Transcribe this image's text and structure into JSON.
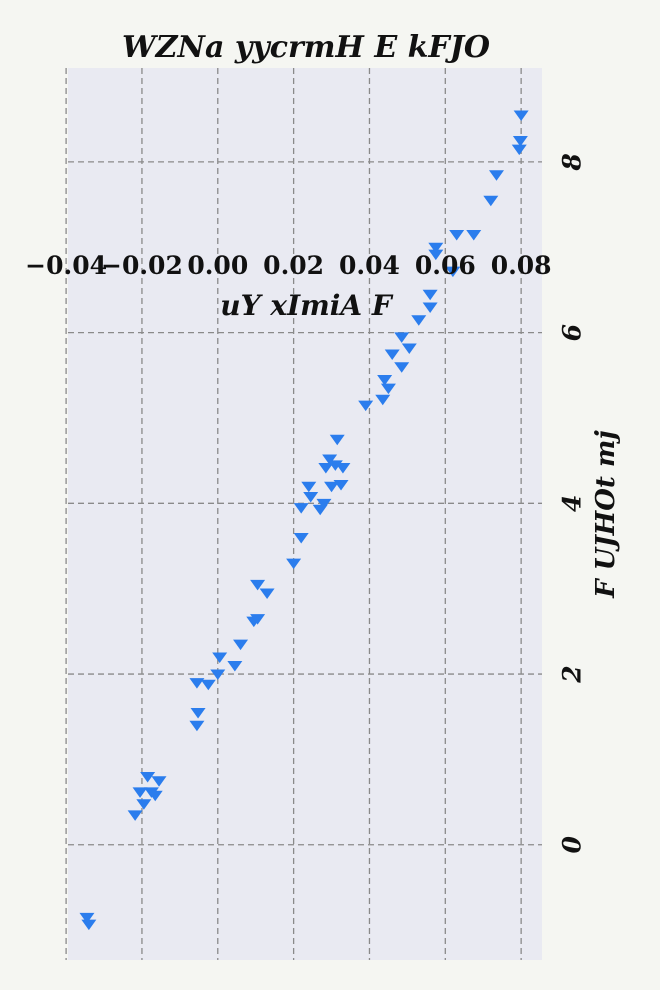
{
  "chart_data": {
    "type": "scatter",
    "title": "WZNa yycrmH E kFJO",
    "xlabel": "uY xImiA F",
    "ylabel": "F UJHOt mj",
    "xlim": [
      -0.0395,
      0.0855
    ],
    "ylim": [
      -1.35,
      9.1
    ],
    "x_ticks": [
      -0.04,
      -0.02,
      0.0,
      0.02,
      0.04,
      0.06,
      0.08
    ],
    "x_tick_labels": [
      "−0.04",
      "−0.02",
      "0.00",
      "0.02",
      "0.04",
      "0.06",
      "0.08"
    ],
    "y_ticks": [
      0,
      2,
      4,
      6,
      8
    ],
    "y_tick_labels": [
      "0",
      "2",
      "4",
      "6",
      "8"
    ],
    "grid": true,
    "marker": "triangle-down",
    "colors": {
      "marker": "#2b7ded",
      "plot_bg": "#e9eaf2",
      "page_bg": "#f5f6f2",
      "grid": "#8a8a8a"
    },
    "points": [
      {
        "x": -0.0345,
        "y": -0.85
      },
      {
        "x": -0.034,
        "y": -0.93
      },
      {
        "x": -0.0218,
        "y": 0.35
      },
      {
        "x": -0.0205,
        "y": 0.62
      },
      {
        "x": -0.0195,
        "y": 0.48
      },
      {
        "x": -0.0185,
        "y": 0.8
      },
      {
        "x": -0.0175,
        "y": 0.62
      },
      {
        "x": -0.0165,
        "y": 0.58
      },
      {
        "x": -0.0155,
        "y": 0.75
      },
      {
        "x": -0.0055,
        "y": 1.4
      },
      {
        "x": -0.0052,
        "y": 1.55
      },
      {
        "x": -0.0055,
        "y": 1.9
      },
      {
        "x": -0.0025,
        "y": 1.88
      },
      {
        "x": 0.0,
        "y": 2.0
      },
      {
        "x": 0.0005,
        "y": 2.2
      },
      {
        "x": 0.0045,
        "y": 2.1
      },
      {
        "x": 0.006,
        "y": 2.35
      },
      {
        "x": 0.0095,
        "y": 2.62
      },
      {
        "x": 0.0105,
        "y": 2.65
      },
      {
        "x": 0.0105,
        "y": 3.05
      },
      {
        "x": 0.013,
        "y": 2.95
      },
      {
        "x": 0.02,
        "y": 3.3
      },
      {
        "x": 0.022,
        "y": 3.6
      },
      {
        "x": 0.022,
        "y": 3.95
      },
      {
        "x": 0.024,
        "y": 4.2
      },
      {
        "x": 0.0245,
        "y": 4.08
      },
      {
        "x": 0.027,
        "y": 3.93
      },
      {
        "x": 0.028,
        "y": 4.0
      },
      {
        "x": 0.0285,
        "y": 4.42
      },
      {
        "x": 0.0295,
        "y": 4.52
      },
      {
        "x": 0.03,
        "y": 4.2
      },
      {
        "x": 0.031,
        "y": 4.45
      },
      {
        "x": 0.0315,
        "y": 4.75
      },
      {
        "x": 0.0325,
        "y": 4.22
      },
      {
        "x": 0.033,
        "y": 4.42
      },
      {
        "x": 0.039,
        "y": 5.15
      },
      {
        "x": 0.0435,
        "y": 5.22
      },
      {
        "x": 0.044,
        "y": 5.45
      },
      {
        "x": 0.045,
        "y": 5.35
      },
      {
        "x": 0.046,
        "y": 5.75
      },
      {
        "x": 0.0485,
        "y": 5.6
      },
      {
        "x": 0.0485,
        "y": 5.95
      },
      {
        "x": 0.0505,
        "y": 5.82
      },
      {
        "x": 0.053,
        "y": 6.15
      },
      {
        "x": 0.056,
        "y": 6.3
      },
      {
        "x": 0.056,
        "y": 6.45
      },
      {
        "x": 0.0575,
        "y": 6.92
      },
      {
        "x": 0.0575,
        "y": 7.0
      },
      {
        "x": 0.062,
        "y": 6.72
      },
      {
        "x": 0.063,
        "y": 7.15
      },
      {
        "x": 0.0675,
        "y": 7.15
      },
      {
        "x": 0.072,
        "y": 7.55
      },
      {
        "x": 0.0735,
        "y": 7.85
      },
      {
        "x": 0.0795,
        "y": 8.15
      },
      {
        "x": 0.0798,
        "y": 8.25
      },
      {
        "x": 0.08,
        "y": 8.55
      }
    ]
  }
}
